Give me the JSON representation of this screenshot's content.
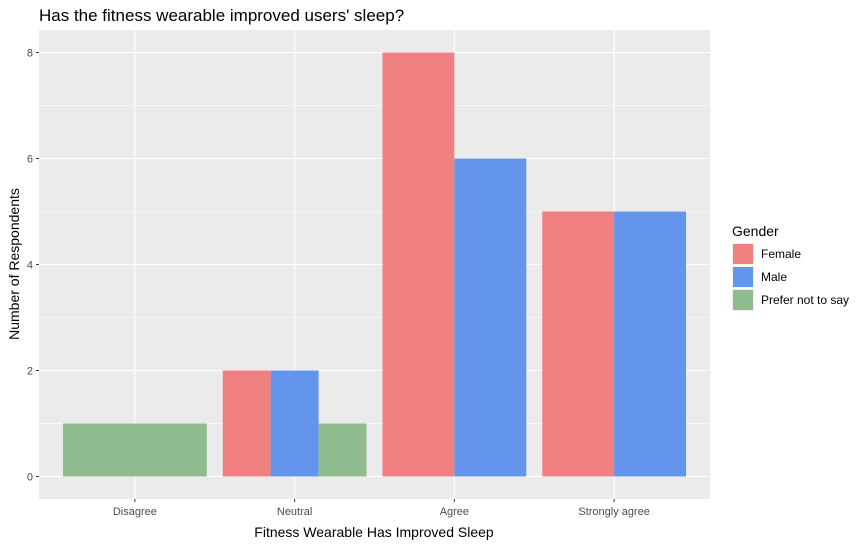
{
  "chart_data": {
    "type": "bar",
    "title": "Has the fitness wearable improved users' sleep?",
    "xlabel": "Fitness Wearable Has Improved Sleep",
    "ylabel": "Number of Respondents",
    "categories": [
      "Disagree",
      "Neutral",
      "Agree",
      "Strongly agree"
    ],
    "ylim": [
      0,
      8.5
    ],
    "yticks": [
      0,
      2,
      4,
      6,
      8
    ],
    "grid": true,
    "legend": {
      "title": "Gender",
      "position": "right"
    },
    "series": [
      {
        "name": "Female",
        "color": "#F08080",
        "values": [
          0,
          2,
          8,
          5
        ]
      },
      {
        "name": "Male",
        "color": "#6495ED",
        "values": [
          0,
          2,
          6,
          5
        ]
      },
      {
        "name": "Prefer not to say",
        "color": "#8FBC8F",
        "values": [
          1,
          1,
          0,
          0
        ]
      }
    ]
  }
}
